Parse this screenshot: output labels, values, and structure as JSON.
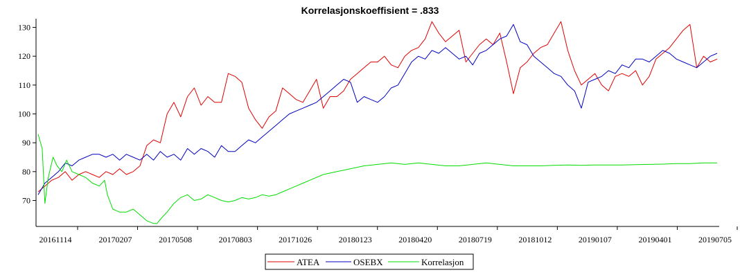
{
  "chart_data": {
    "type": "line",
    "title": "Korrelasjonskoeffisient =  .833",
    "xlabel": "",
    "ylabel": "",
    "ylim": [
      61,
      133
    ],
    "yticks": [
      70,
      80,
      90,
      100,
      110,
      120,
      130
    ],
    "x_tick_labels": [
      "20161114",
      "20170207",
      "20170508",
      "20170803",
      "20171026",
      "20180123",
      "20180420",
      "20180719",
      "20181012",
      "20190107",
      "20190401",
      "20190705"
    ],
    "legend_position": "bottom-center",
    "grid": false,
    "x_index_range": [
      0,
      100
    ],
    "series": [
      {
        "name": "ATEA",
        "color": "#e00000",
        "points": [
          [
            0,
            73
          ],
          [
            1,
            75
          ],
          [
            2,
            77
          ],
          [
            3,
            78
          ],
          [
            4,
            80
          ],
          [
            5,
            77
          ],
          [
            6,
            79
          ],
          [
            7,
            80
          ],
          [
            8,
            79
          ],
          [
            9,
            78
          ],
          [
            10,
            80
          ],
          [
            11,
            79
          ],
          [
            12,
            81
          ],
          [
            13,
            79
          ],
          [
            14,
            80
          ],
          [
            15,
            82
          ],
          [
            16,
            89
          ],
          [
            17,
            91
          ],
          [
            18,
            90
          ],
          [
            19,
            100
          ],
          [
            20,
            104
          ],
          [
            21,
            99
          ],
          [
            22,
            106
          ],
          [
            23,
            109
          ],
          [
            24,
            103
          ],
          [
            25,
            106
          ],
          [
            26,
            104
          ],
          [
            27,
            104
          ],
          [
            28,
            114
          ],
          [
            29,
            113
          ],
          [
            30,
            111
          ],
          [
            31,
            102
          ],
          [
            32,
            98
          ],
          [
            33,
            95
          ],
          [
            34,
            99
          ],
          [
            35,
            101
          ],
          [
            36,
            109
          ],
          [
            37,
            107
          ],
          [
            38,
            105
          ],
          [
            39,
            104
          ],
          [
            40,
            108
          ],
          [
            41,
            112
          ],
          [
            42,
            102
          ],
          [
            43,
            106
          ],
          [
            44,
            106
          ],
          [
            45,
            108
          ],
          [
            46,
            112
          ],
          [
            47,
            114
          ],
          [
            48,
            116
          ],
          [
            49,
            118
          ],
          [
            50,
            118
          ],
          [
            51,
            120
          ],
          [
            52,
            117
          ],
          [
            53,
            116
          ],
          [
            54,
            120
          ],
          [
            55,
            122
          ],
          [
            56,
            123
          ],
          [
            57,
            126
          ],
          [
            58,
            132
          ],
          [
            59,
            128
          ],
          [
            60,
            125
          ],
          [
            61,
            127
          ],
          [
            62,
            129
          ],
          [
            63,
            118
          ],
          [
            64,
            121
          ],
          [
            65,
            124
          ],
          [
            66,
            126
          ],
          [
            67,
            124
          ],
          [
            68,
            128
          ],
          [
            69,
            118
          ],
          [
            70,
            107
          ],
          [
            71,
            116
          ],
          [
            72,
            118
          ],
          [
            73,
            121
          ],
          [
            74,
            123
          ],
          [
            75,
            124
          ],
          [
            76,
            128
          ],
          [
            77,
            132
          ],
          [
            78,
            122
          ],
          [
            79,
            115
          ],
          [
            80,
            110
          ],
          [
            81,
            112
          ],
          [
            82,
            114
          ],
          [
            83,
            110
          ],
          [
            84,
            108
          ],
          [
            85,
            113
          ],
          [
            86,
            114
          ],
          [
            87,
            113
          ],
          [
            88,
            115
          ],
          [
            89,
            110
          ],
          [
            90,
            113
          ],
          [
            91,
            119
          ],
          [
            92,
            121
          ],
          [
            93,
            123
          ],
          [
            94,
            126
          ],
          [
            95,
            129
          ],
          [
            96,
            131
          ],
          [
            97,
            116
          ],
          [
            98,
            120
          ],
          [
            99,
            118
          ],
          [
            100,
            119
          ]
        ]
      },
      {
        "name": "OSEBX",
        "color": "#0000c0",
        "points": [
          [
            0,
            72
          ],
          [
            1,
            76
          ],
          [
            2,
            78
          ],
          [
            3,
            80
          ],
          [
            4,
            83
          ],
          [
            5,
            82
          ],
          [
            6,
            84
          ],
          [
            7,
            85
          ],
          [
            8,
            86
          ],
          [
            9,
            86
          ],
          [
            10,
            85
          ],
          [
            11,
            86
          ],
          [
            12,
            84
          ],
          [
            13,
            86
          ],
          [
            14,
            85
          ],
          [
            15,
            84
          ],
          [
            16,
            86
          ],
          [
            17,
            84
          ],
          [
            18,
            87
          ],
          [
            19,
            85
          ],
          [
            20,
            86
          ],
          [
            21,
            84
          ],
          [
            22,
            88
          ],
          [
            23,
            86
          ],
          [
            24,
            88
          ],
          [
            25,
            87
          ],
          [
            26,
            85
          ],
          [
            27,
            89
          ],
          [
            28,
            87
          ],
          [
            29,
            87
          ],
          [
            30,
            89
          ],
          [
            31,
            91
          ],
          [
            32,
            90
          ],
          [
            33,
            92
          ],
          [
            34,
            94
          ],
          [
            35,
            96
          ],
          [
            36,
            98
          ],
          [
            37,
            100
          ],
          [
            38,
            101
          ],
          [
            39,
            102
          ],
          [
            40,
            103
          ],
          [
            41,
            104
          ],
          [
            42,
            106
          ],
          [
            43,
            108
          ],
          [
            44,
            110
          ],
          [
            45,
            112
          ],
          [
            46,
            111
          ],
          [
            47,
            104
          ],
          [
            48,
            106
          ],
          [
            49,
            105
          ],
          [
            50,
            104
          ],
          [
            51,
            106
          ],
          [
            52,
            109
          ],
          [
            53,
            110
          ],
          [
            54,
            114
          ],
          [
            55,
            118
          ],
          [
            56,
            120
          ],
          [
            57,
            119
          ],
          [
            58,
            122
          ],
          [
            59,
            121
          ],
          [
            60,
            123
          ],
          [
            61,
            121
          ],
          [
            62,
            119
          ],
          [
            63,
            120
          ],
          [
            64,
            117
          ],
          [
            65,
            121
          ],
          [
            66,
            122
          ],
          [
            67,
            124
          ],
          [
            68,
            126
          ],
          [
            69,
            127
          ],
          [
            70,
            131
          ],
          [
            71,
            125
          ],
          [
            72,
            124
          ],
          [
            73,
            120
          ],
          [
            74,
            118
          ],
          [
            75,
            116
          ],
          [
            76,
            114
          ],
          [
            77,
            113
          ],
          [
            78,
            110
          ],
          [
            79,
            108
          ],
          [
            80,
            102
          ],
          [
            81,
            111
          ],
          [
            82,
            112
          ],
          [
            83,
            113
          ],
          [
            84,
            115
          ],
          [
            85,
            114
          ],
          [
            86,
            117
          ],
          [
            87,
            116
          ],
          [
            88,
            119
          ],
          [
            89,
            119
          ],
          [
            90,
            118
          ],
          [
            91,
            120
          ],
          [
            92,
            122
          ],
          [
            93,
            121
          ],
          [
            94,
            119
          ],
          [
            95,
            118
          ],
          [
            96,
            117
          ],
          [
            97,
            116
          ],
          [
            98,
            118
          ],
          [
            99,
            120
          ],
          [
            100,
            121
          ]
        ]
      },
      {
        "name": "Korrelasjon",
        "color": "#00dd00",
        "points": [
          [
            0,
            93
          ],
          [
            0.6,
            88
          ],
          [
            1,
            69
          ],
          [
            1.5,
            78
          ],
          [
            2.2,
            85
          ],
          [
            2.8,
            82
          ],
          [
            3.5,
            80
          ],
          [
            4.2,
            84
          ],
          [
            5,
            80
          ],
          [
            6,
            79
          ],
          [
            7,
            78
          ],
          [
            8,
            76
          ],
          [
            9,
            75
          ],
          [
            9.8,
            77
          ],
          [
            10.2,
            72
          ],
          [
            11,
            67
          ],
          [
            12,
            66
          ],
          [
            13,
            66
          ],
          [
            14,
            67
          ],
          [
            15,
            65
          ],
          [
            16,
            63
          ],
          [
            17,
            62
          ],
          [
            17.5,
            62
          ],
          [
            18.2,
            64
          ],
          [
            19,
            66
          ],
          [
            20,
            69
          ],
          [
            21,
            71
          ],
          [
            22,
            72
          ],
          [
            23,
            70
          ],
          [
            24,
            70.5
          ],
          [
            25,
            72
          ],
          [
            26,
            71
          ],
          [
            27,
            70
          ],
          [
            28,
            69.5
          ],
          [
            29,
            70
          ],
          [
            30,
            71
          ],
          [
            31,
            70.5
          ],
          [
            32,
            71
          ],
          [
            33,
            72
          ],
          [
            34,
            71.5
          ],
          [
            35,
            72
          ],
          [
            36,
            73
          ],
          [
            37,
            74
          ],
          [
            38,
            75
          ],
          [
            39,
            76
          ],
          [
            40,
            77
          ],
          [
            42,
            79
          ],
          [
            44,
            80
          ],
          [
            46,
            81
          ],
          [
            48,
            82
          ],
          [
            50,
            82.5
          ],
          [
            52,
            83
          ],
          [
            54,
            82.5
          ],
          [
            56,
            83
          ],
          [
            58,
            82.5
          ],
          [
            60,
            82
          ],
          [
            62,
            82
          ],
          [
            64,
            82.5
          ],
          [
            66,
            83
          ],
          [
            68,
            82.5
          ],
          [
            70,
            82
          ],
          [
            72,
            82
          ],
          [
            74,
            82
          ],
          [
            76,
            82.2
          ],
          [
            78,
            82.3
          ],
          [
            80,
            82.2
          ],
          [
            82,
            82.3
          ],
          [
            84,
            82.3
          ],
          [
            86,
            82.3
          ],
          [
            88,
            82.4
          ],
          [
            90,
            82.5
          ],
          [
            92,
            82.6
          ],
          [
            94,
            82.8
          ],
          [
            96,
            82.8
          ],
          [
            98,
            83
          ],
          [
            100,
            83
          ]
        ]
      }
    ]
  }
}
